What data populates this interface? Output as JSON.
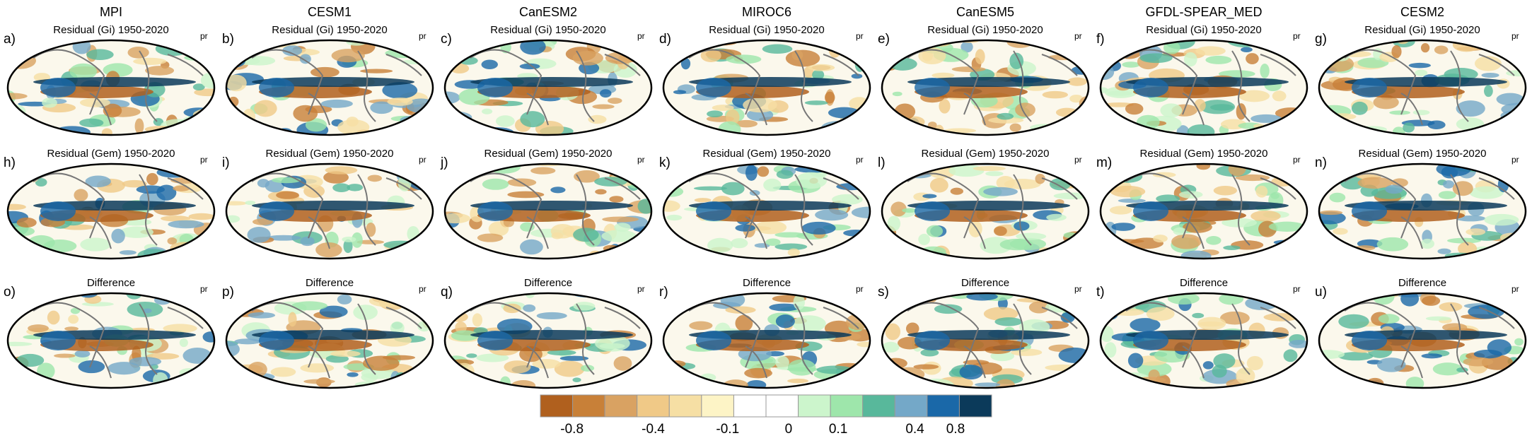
{
  "figure": {
    "variable": "pr",
    "columns": [
      {
        "model": "MPI",
        "panels": [
          {
            "label": "a)",
            "title": "Residual (Gi) 1950-2020"
          },
          {
            "label": "h)",
            "title": "Residual (Gem) 1950-2020"
          },
          {
            "label": "o)",
            "title": "Difference"
          }
        ]
      },
      {
        "model": "CESM1",
        "panels": [
          {
            "label": "b)",
            "title": "Residual (Gi) 1950-2020"
          },
          {
            "label": "i)",
            "title": "Residual (Gem) 1950-2020"
          },
          {
            "label": "p)",
            "title": "Difference"
          }
        ]
      },
      {
        "model": "CanESM2",
        "panels": [
          {
            "label": "c)",
            "title": "Residual (Gi) 1950-2020"
          },
          {
            "label": "j)",
            "title": "Residual (Gem) 1950-2020"
          },
          {
            "label": "q)",
            "title": "Difference"
          }
        ]
      },
      {
        "model": "MIROC6",
        "panels": [
          {
            "label": "d)",
            "title": "Residual (Gi) 1950-2020"
          },
          {
            "label": "k)",
            "title": "Residual (Gem) 1950-2020"
          },
          {
            "label": "r)",
            "title": "Difference"
          }
        ]
      },
      {
        "model": "CanESM5",
        "panels": [
          {
            "label": "e)",
            "title": "Residual (Gi) 1950-2020"
          },
          {
            "label": "l)",
            "title": "Residual (Gem) 1950-2020"
          },
          {
            "label": "s)",
            "title": "Difference"
          }
        ]
      },
      {
        "model": "GFDL-SPEAR_MED",
        "panels": [
          {
            "label": "f)",
            "title": "Residual (Gi) 1950-2020"
          },
          {
            "label": "m)",
            "title": "Residual (Gem) 1950-2020"
          },
          {
            "label": "t)",
            "title": "Difference"
          }
        ]
      },
      {
        "model": "CESM2",
        "panels": [
          {
            "label": "g)",
            "title": "Residual (Gi) 1950-2020"
          },
          {
            "label": "n)",
            "title": "Residual (Gem) 1950-2020"
          },
          {
            "label": "u)",
            "title": "Difference"
          }
        ]
      }
    ],
    "colorbar": {
      "colors": [
        "#b0601e",
        "#c88038",
        "#d9a262",
        "#f0c987",
        "#f6dfa4",
        "#fdf4c6",
        "#ffffff",
        "#ffffff",
        "#ccf5cc",
        "#9ee6ab",
        "#58b89b",
        "#74a8c8",
        "#1a68a8",
        "#0b3a5a"
      ],
      "labels": [
        "-0.8",
        "-0.4",
        "-0.1",
        "0",
        "0.1",
        "0.4",
        "0.8"
      ]
    }
  }
}
